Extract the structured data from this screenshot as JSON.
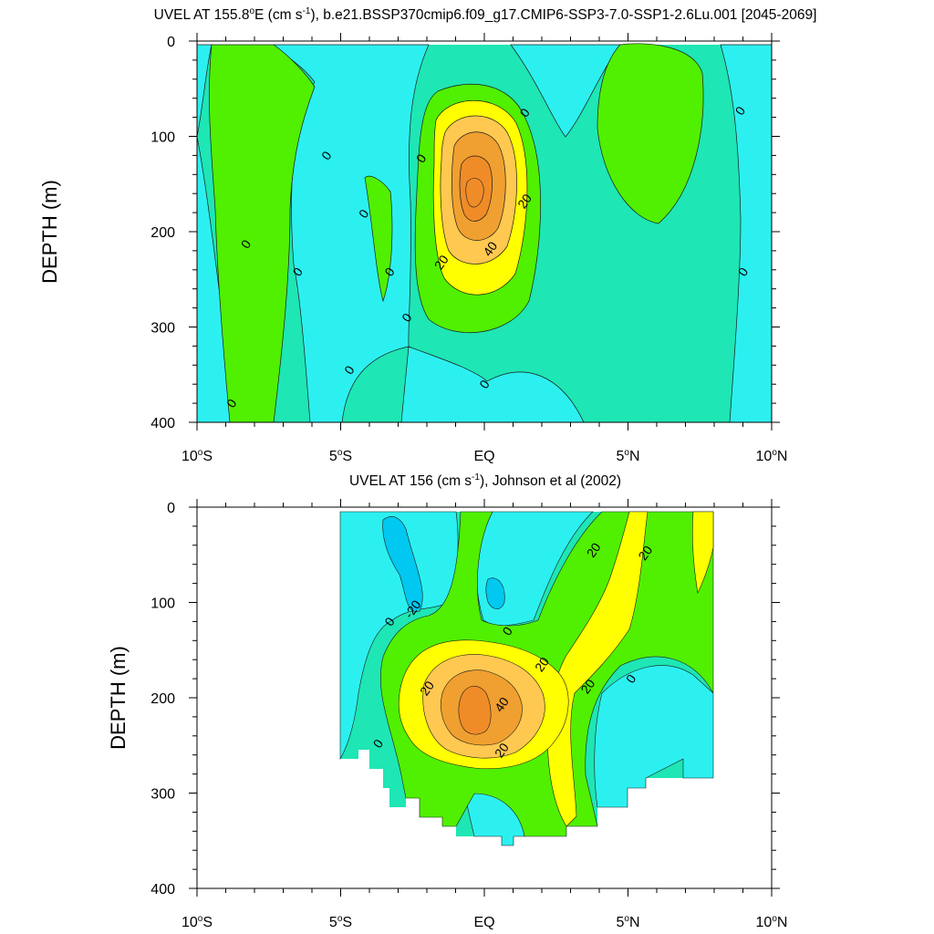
{
  "colors": {
    "background": "#ffffff",
    "frame": "#000000",
    "contour_line": "#1a1a1a",
    "fill_levels": {
      "-40": "#00c8f0",
      "-20": "#2cf0f0",
      "0": "#1ee6b4",
      "20": "#50f000",
      "40": "#ffff00",
      "60": "#ffc850",
      "80": "#f0a030",
      "100": "#f08c28"
    }
  },
  "chart_data": [
    {
      "type": "heatmap",
      "title_prefix": "UVEL AT 155.8",
      "title_degree": "o",
      "title_mid": "E (cm s",
      "title_exp": "-1",
      "title_suffix": "), b.e21.BSSP370cmip6.f09_g17.CMIP6-SSP3-7.0-SSP1-2.6Lu.001 [2045-2069]",
      "xlabel": "",
      "ylabel": "DEPTH (m)",
      "x_ticks": [
        {
          "main": "10",
          "deg": "o",
          "suffix": "S",
          "value": -10
        },
        {
          "main": "5",
          "deg": "o",
          "suffix": "S",
          "value": -5
        },
        {
          "main": "EQ",
          "deg": "",
          "suffix": "",
          "value": 0
        },
        {
          "main": "5",
          "deg": "o",
          "suffix": "N",
          "value": 5
        },
        {
          "main": "10",
          "deg": "o",
          "suffix": "N",
          "value": 10
        }
      ],
      "y_ticks": [
        "0",
        "100",
        "200",
        "300",
        "400"
      ],
      "xlim": [
        -10,
        10
      ],
      "ylim": [
        400,
        0
      ],
      "contour_interval": 10,
      "contour_labels": [
        {
          "text": "0",
          "lat": 0.0,
          "depth": 360
        },
        {
          "text": "0",
          "lat": -8.8,
          "depth": 380
        },
        {
          "text": "0",
          "lat": -8.3,
          "depth": 213
        },
        {
          "text": "0",
          "lat": -6.5,
          "depth": 242
        },
        {
          "text": "0",
          "lat": -5.5,
          "depth": 120
        },
        {
          "text": "0",
          "lat": -4.7,
          "depth": 345
        },
        {
          "text": "0",
          "lat": -4.2,
          "depth": 181
        },
        {
          "text": "0",
          "lat": -3.3,
          "depth": 242
        },
        {
          "text": "0",
          "lat": -2.7,
          "depth": 290
        },
        {
          "text": "0",
          "lat": -2.2,
          "depth": 123
        },
        {
          "text": "0",
          "lat": 1.4,
          "depth": 75
        },
        {
          "text": "0",
          "lat": 8.9,
          "depth": 73
        },
        {
          "text": "0",
          "lat": 9.0,
          "depth": 242
        },
        {
          "text": "20",
          "lat": -1.5,
          "depth": 232
        },
        {
          "text": "40",
          "lat": 0.2,
          "depth": 218
        },
        {
          "text": "20",
          "lat": 1.4,
          "depth": 168
        }
      ],
      "features": [
        {
          "kind": "jet",
          "lat": -0.4,
          "depth": 165,
          "max": 80
        }
      ]
    },
    {
      "type": "heatmap",
      "title_prefix": "UVEL AT 156 (cm s",
      "title_exp": "-1",
      "title_suffix": "), Johnson et al (2002)",
      "xlabel": "",
      "ylabel": "DEPTH (m)",
      "x_ticks": [
        {
          "main": "10",
          "deg": "o",
          "suffix": "S",
          "value": -10
        },
        {
          "main": "5",
          "deg": "o",
          "suffix": "S",
          "value": -5
        },
        {
          "main": "EQ",
          "deg": "",
          "suffix": "",
          "value": 0
        },
        {
          "main": "5",
          "deg": "o",
          "suffix": "N",
          "value": 5
        },
        {
          "main": "10",
          "deg": "o",
          "suffix": "N",
          "value": 10
        }
      ],
      "y_ticks": [
        "0",
        "100",
        "200",
        "300",
        "400"
      ],
      "xlim": [
        -10,
        10
      ],
      "ylim": [
        400,
        0
      ],
      "data_lat_range": [
        -5,
        8
      ],
      "contour_interval": 10,
      "contour_labels": [
        {
          "text": "0",
          "lat": -3.3,
          "depth": 120
        },
        {
          "text": "-20",
          "lat": -2.5,
          "depth": 107
        },
        {
          "text": "0",
          "lat": 0.8,
          "depth": 130
        },
        {
          "text": "0",
          "lat": -3.7,
          "depth": 248
        },
        {
          "text": "20",
          "lat": -2.0,
          "depth": 190
        },
        {
          "text": "20",
          "lat": 2.0,
          "depth": 165
        },
        {
          "text": "40",
          "lat": 0.6,
          "depth": 207
        },
        {
          "text": "20",
          "lat": 0.6,
          "depth": 255
        },
        {
          "text": "20",
          "lat": 3.8,
          "depth": 45
        },
        {
          "text": "20",
          "lat": 5.6,
          "depth": 48
        },
        {
          "text": "20",
          "lat": 3.6,
          "depth": 188
        },
        {
          "text": "0",
          "lat": 5.1,
          "depth": 180
        }
      ],
      "features": [
        {
          "kind": "jet",
          "lat": -0.3,
          "depth": 200,
          "max": 70
        }
      ]
    }
  ]
}
